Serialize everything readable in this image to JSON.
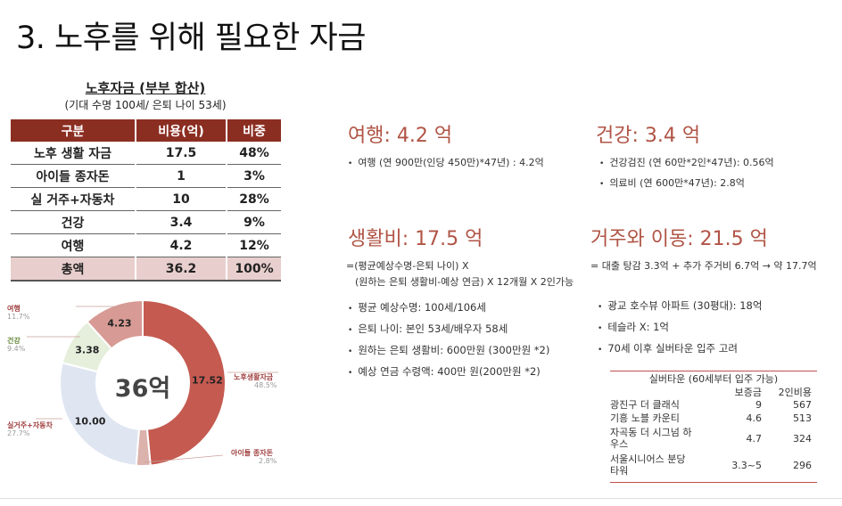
{
  "title": "3. 노후를 위해 필요한 자금",
  "summary": {
    "title": "노후자금 (부부 합산)",
    "subtitle": "(기대 수명 100세/ 은퇴 나이 53세)",
    "headers": [
      "구분",
      "비용(억)",
      "비중"
    ],
    "rows": [
      {
        "name": "노후 생활 자금",
        "cost": "17.5",
        "share": "48%"
      },
      {
        "name": "아이들 종자돈",
        "cost": "1",
        "share": "3%"
      },
      {
        "name": "실 거주+자동차",
        "cost": "10",
        "share": "28%"
      },
      {
        "name": "건강",
        "cost": "3.4",
        "share": "9%"
      },
      {
        "name": "여행",
        "cost": "4.2",
        "share": "12%"
      }
    ],
    "total": {
      "name": "총액",
      "cost": "36.2",
      "share": "100%"
    }
  },
  "chart_data": {
    "type": "pie",
    "center_label": "36억",
    "slices": [
      {
        "label": "노후생활자금",
        "value": 17.52,
        "value_label": "17.52",
        "pct": "48.5%",
        "color": "#c45a50"
      },
      {
        "label": "아이들 종자돈",
        "value": 1.0,
        "value_label": "",
        "pct": "2.8%",
        "color": "#dcb2ac"
      },
      {
        "label": "실거주+자동차",
        "value": 10.0,
        "value_label": "10.00",
        "pct": "27.7%",
        "color": "#dfe6f1"
      },
      {
        "label": "건강",
        "value": 3.38,
        "value_label": "3.38",
        "pct": "9.4%",
        "color": "#e5efdc"
      },
      {
        "label": "여행",
        "value": 4.23,
        "value_label": "4.23",
        "pct": "11.7%",
        "color": "#d89a94"
      }
    ]
  },
  "travel": {
    "heading": "여행: 4.2 억",
    "items": [
      "여행 (연 900만(인당 450만)*47년) : 4.2억"
    ]
  },
  "health": {
    "heading": "건강: 3.4 억",
    "items": [
      "건강검진 (연 60만*2인*47년): 0.56억",
      "의료비 (연 600만*47년): 2.8억"
    ]
  },
  "living": {
    "heading": "생활비: 17.5 억",
    "formula1": "=(평균예상수명-은퇴 나이) X",
    "formula2": "(원하는 은퇴 생활비-예상 연금) X 12개월 X 2인가능",
    "items": [
      "평균 예상수명: 100세/106세",
      "은퇴 나이: 본인 53세/배우자 58세",
      "원하는 은퇴 생활비: 600만원 (300만원 *2)",
      "예상 연금 수령액: 400만 원(200만원 *2)"
    ]
  },
  "housing": {
    "heading": "거주와 이동: 21.5 억",
    "formula": "=  대출 탕감 3.3억 + 추가 주거비 6.7억 → 약 17.7억",
    "items": [
      "광교 호수뷰 아파트 (30평대): 18억",
      "테슬라 X: 1억",
      "70세 이후 실버타운 입주 고려"
    ]
  },
  "silver": {
    "caption": "실버타운 (60세부터 입주 가능)",
    "col1": "보증금",
    "col2": "2인비용",
    "rows": [
      {
        "name": "광진구 더 클래식",
        "deposit": "9",
        "cost": "567"
      },
      {
        "name": "기흥 노블 카운티",
        "deposit": "4.6",
        "cost": "513"
      },
      {
        "name": "자곡동 더 시그넘 하우스",
        "deposit": "4.7",
        "cost": "324"
      },
      {
        "name": "서울시니어스 분당 타워",
        "deposit": "3.3~5",
        "cost": "296"
      }
    ]
  },
  "colors": {
    "header_bg": "#8b2e22",
    "total_bg": "#e8cfcd",
    "heading": "#b05445",
    "silver_rule": "#c0504d"
  }
}
